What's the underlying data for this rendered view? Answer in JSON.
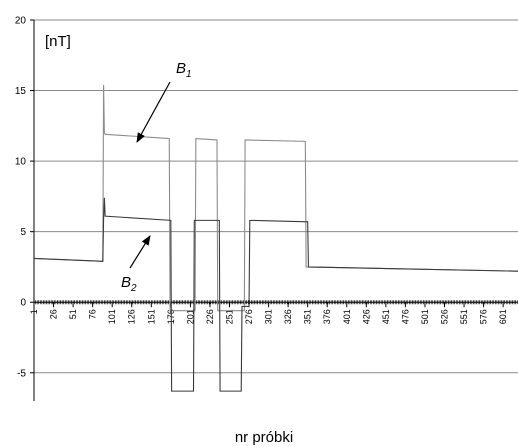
{
  "chart_data": {
    "type": "line",
    "unit_label": "[nT]",
    "xlabel": "nr próbki",
    "ylabel": "",
    "ylim": [
      -7,
      20
    ],
    "ytick_values": [
      -5,
      0,
      5,
      10,
      15,
      20
    ],
    "ytick_labels": [
      "-5",
      "0",
      "5",
      "10",
      "15",
      "20"
    ],
    "xlim": [
      1,
      620
    ],
    "xtick_values": [
      1,
      26,
      51,
      76,
      101,
      126,
      151,
      176,
      201,
      226,
      251,
      276,
      301,
      326,
      351,
      376,
      401,
      426,
      451,
      476,
      501,
      526,
      551,
      576,
      601
    ],
    "xtick_labels": [
      "1",
      "26",
      "51",
      "76",
      "101",
      "126",
      "151",
      "176",
      "201",
      "226",
      "251",
      "276",
      "301",
      "326",
      "351",
      "376",
      "401",
      "426",
      "451",
      "476",
      "501",
      "526",
      "551",
      "576",
      "601"
    ],
    "grid": "horizontal",
    "series": [
      {
        "label_main": "B",
        "label_sub": "1",
        "color": "#8c8c8c",
        "points": [
          [
            1,
            3.1
          ],
          [
            89,
            2.9
          ],
          [
            90,
            15.4
          ],
          [
            91,
            12.0
          ],
          [
            92,
            11.9
          ],
          [
            174,
            11.6
          ],
          [
            175,
            -0.6
          ],
          [
            207,
            -0.6
          ],
          [
            208,
            11.6
          ],
          [
            235,
            11.5
          ],
          [
            236,
            -0.6
          ],
          [
            270,
            -0.6
          ],
          [
            271,
            11.5
          ],
          [
            348,
            11.4
          ],
          [
            349,
            2.5
          ],
          [
            620,
            2.2
          ]
        ]
      },
      {
        "label_main": "B",
        "label_sub": "2",
        "color": "#3a3a3a",
        "points": [
          [
            1,
            3.1
          ],
          [
            89,
            2.9
          ],
          [
            90,
            5.9
          ],
          [
            91,
            7.4
          ],
          [
            92,
            6.1
          ],
          [
            176,
            5.8
          ],
          [
            177,
            -6.3
          ],
          [
            205,
            -6.3
          ],
          [
            206,
            5.8
          ],
          [
            238,
            5.8
          ],
          [
            239,
            -6.3
          ],
          [
            266,
            -6.3
          ],
          [
            267,
            -0.3
          ],
          [
            276,
            -0.3
          ],
          [
            277,
            5.8
          ],
          [
            351,
            5.7
          ],
          [
            352,
            2.5
          ],
          [
            620,
            2.2
          ]
        ]
      }
    ]
  }
}
